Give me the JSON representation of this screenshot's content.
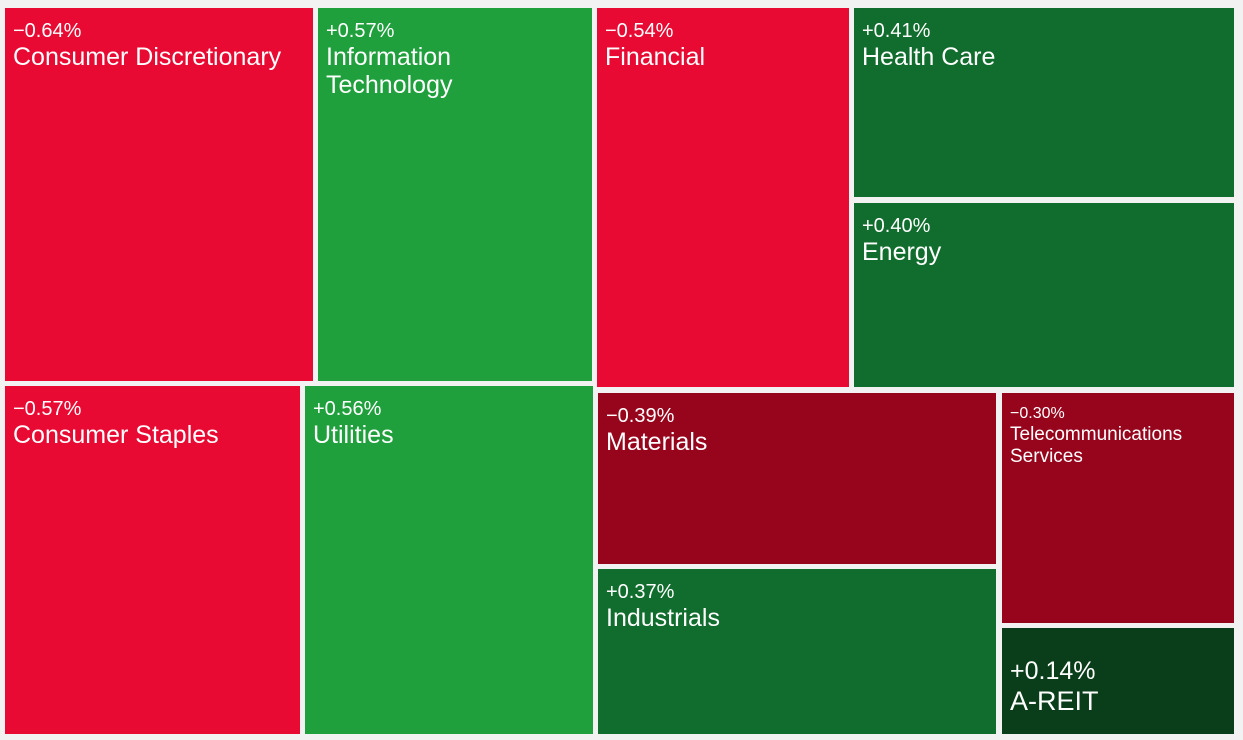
{
  "chart_data": {
    "type": "treemap",
    "colors": {
      "strong_negative": "#e80a33",
      "moderate_negative": "#97051d",
      "strong_positive": "#1fa03d",
      "moderate_positive": "#116d2d",
      "weak_positive": "#0a3d1a"
    },
    "tiles": [
      {
        "id": "consumer-discretionary",
        "change": "−0.64%",
        "label": "Consumer Discretionary",
        "color": "strong_negative"
      },
      {
        "id": "information-technology",
        "change": "+0.57%",
        "label": "Information Technology",
        "color": "strong_positive"
      },
      {
        "id": "financial",
        "change": "−0.54%",
        "label": "Financial",
        "color": "strong_negative"
      },
      {
        "id": "health-care",
        "change": "+0.41%",
        "label": "Health Care",
        "color": "moderate_positive"
      },
      {
        "id": "energy",
        "change": "+0.40%",
        "label": "Energy",
        "color": "moderate_positive"
      },
      {
        "id": "consumer-staples",
        "change": "−0.57%",
        "label": "Consumer Staples",
        "color": "strong_negative"
      },
      {
        "id": "utilities",
        "change": "+0.56%",
        "label": "Utilities",
        "color": "strong_positive"
      },
      {
        "id": "materials",
        "change": "−0.39%",
        "label": "Materials",
        "color": "moderate_negative"
      },
      {
        "id": "telecommunications-services",
        "change": "−0.30%",
        "label": "Telecommunications Services",
        "color": "moderate_negative"
      },
      {
        "id": "industrials",
        "change": "+0.37%",
        "label": "Industrials",
        "color": "moderate_positive"
      },
      {
        "id": "a-reit",
        "change": "+0.14%",
        "label": "A-REIT",
        "color": "weak_positive"
      }
    ]
  }
}
